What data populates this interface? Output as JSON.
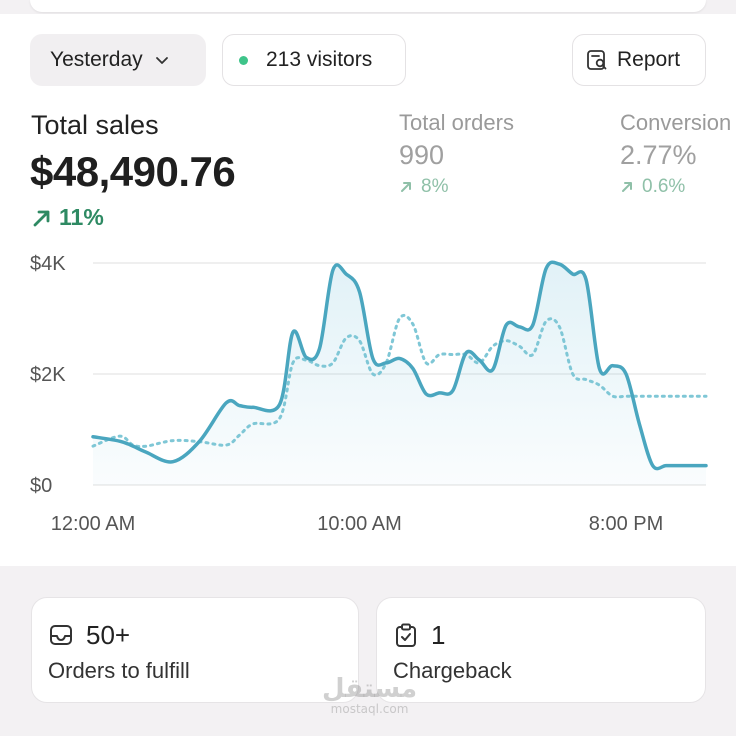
{
  "filters": {
    "period_label": "Yesterday",
    "visitors_label": "213 visitors",
    "report_label": "Report"
  },
  "metrics": {
    "total_sales": {
      "label": "Total sales",
      "value": "$48,490.76",
      "delta": "11%"
    },
    "total_orders": {
      "label": "Total orders",
      "value": "990",
      "delta": "8%"
    },
    "conversion": {
      "label": "Conversion",
      "value": "2.77%",
      "delta": "0.6%"
    }
  },
  "chart_data": {
    "type": "line",
    "title": "",
    "xlabel": "",
    "ylabel": "",
    "y_tick_labels": [
      "$0",
      "$2K",
      "$4K"
    ],
    "y_ticks": [
      0,
      2000,
      4000
    ],
    "x_tick_labels": [
      "12:00 AM",
      "10:00 AM",
      "8:00 PM"
    ],
    "x_ticks": [
      0,
      10,
      20
    ],
    "xlim": [
      0,
      23
    ],
    "ylim": [
      0,
      4000
    ],
    "grid": true,
    "legend": "none",
    "series": [
      {
        "style": "solid",
        "color": "#4aa6bf",
        "x": [
          0,
          1,
          1.5,
          2,
          3,
          4,
          5,
          5.5,
          6,
          7,
          7.5,
          8,
          8.5,
          9,
          9.5,
          10,
          10.5,
          11,
          11.5,
          12,
          12.5,
          13,
          13.5,
          14,
          14.5,
          15,
          15.5,
          16,
          16.5,
          17,
          17.5,
          18,
          18.5,
          19,
          19.5,
          20,
          20.5,
          21,
          21.5,
          22,
          22.5,
          23
        ],
        "y": [
          870,
          790,
          700,
          590,
          420,
          790,
          1480,
          1430,
          1400,
          1450,
          2750,
          2300,
          2460,
          3870,
          3800,
          3480,
          2280,
          2200,
          2280,
          2100,
          1640,
          1660,
          1700,
          2380,
          2250,
          2080,
          2880,
          2850,
          2880,
          3900,
          3980,
          3800,
          3700,
          2100,
          2150,
          2000,
          1100,
          350,
          350,
          350,
          350,
          350
        ]
      },
      {
        "style": "dotted",
        "color": "#7fc7d6",
        "x": [
          0,
          1,
          1.5,
          2,
          3,
          4,
          5,
          5.5,
          6,
          7,
          7.5,
          8,
          8.5,
          9,
          9.5,
          10,
          10.5,
          11,
          11.5,
          12,
          12.5,
          13,
          13.5,
          14,
          14.5,
          15,
          15.5,
          16,
          16.5,
          17,
          17.5,
          18,
          18.5,
          19,
          19.5,
          20,
          20.5,
          21,
          21.5,
          22,
          22.5,
          23
        ],
        "y": [
          700,
          880,
          720,
          700,
          800,
          780,
          720,
          900,
          1100,
          1200,
          2200,
          2250,
          2150,
          2200,
          2650,
          2600,
          2000,
          2200,
          3000,
          2900,
          2200,
          2350,
          2350,
          2350,
          2200,
          2500,
          2600,
          2500,
          2350,
          2950,
          2850,
          2000,
          1900,
          1800,
          1600,
          1600,
          1600,
          1600,
          1600,
          1600,
          1600,
          1600
        ]
      }
    ]
  },
  "cards": [
    {
      "value": "50+",
      "label": "Orders to fulfill",
      "icon": "inbox-icon"
    },
    {
      "value": "1",
      "label": "Chargeback",
      "icon": "clipboard-check-icon"
    }
  ],
  "watermark": {
    "arabic": "مستقل",
    "latin": "mostaql.com"
  },
  "colors": {
    "accent": "#2e8a63",
    "line": "#4aa6bf",
    "status_dot": "#3ec48a"
  }
}
